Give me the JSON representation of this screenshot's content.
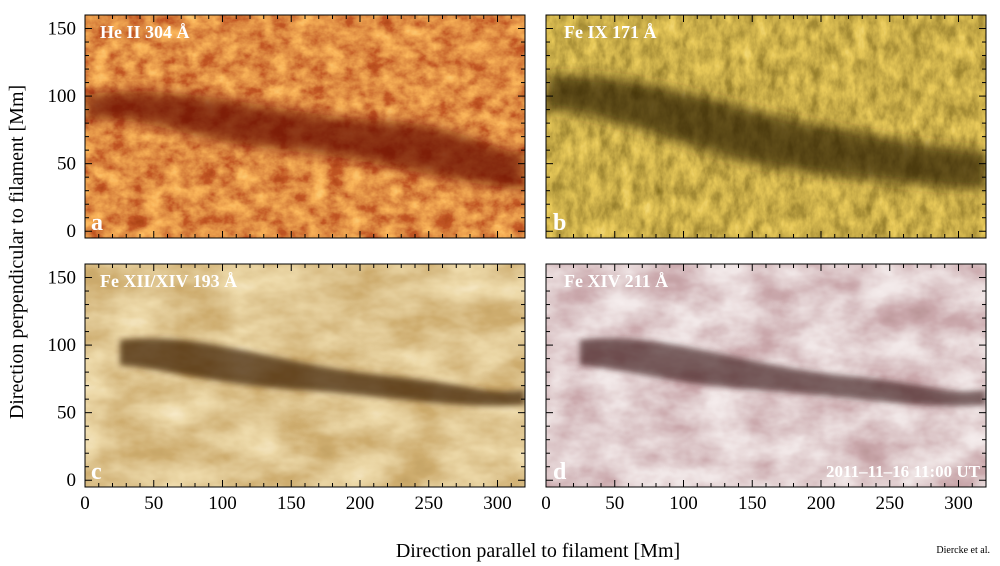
{
  "panels": [
    {
      "id": "a",
      "channel": "He II 304 Å",
      "letter": "a",
      "colors": {
        "dark": "#6a0a04",
        "mid": "#b52a0c",
        "bright": "#f29a3a",
        "base": "#8e1808"
      }
    },
    {
      "id": "b",
      "channel": "Fe IX 171 Å",
      "letter": "b",
      "colors": {
        "dark": "#3a2a04",
        "mid": "#8a6410",
        "bright": "#e2a82a",
        "base": "#6a4c0a"
      }
    },
    {
      "id": "c",
      "channel": "Fe XII/XIV 193 Å",
      "letter": "c",
      "colors": {
        "dark": "#4a2c0c",
        "mid": "#a8742e",
        "bright": "#f0dcae",
        "base": "#b88a46"
      }
    },
    {
      "id": "d",
      "channel": "Fe XIV 211 Å",
      "letter": "d",
      "colors": {
        "dark": "#4c2628",
        "mid": "#9a6468",
        "bright": "#f3e6e6",
        "base": "#b88c8e"
      }
    }
  ],
  "date_stamp": "2011–11–16   11:00 UT",
  "axes": {
    "x_title": "Direction parallel to filament [Mm]",
    "y_title": "Direction perpendicular to filament [Mm]",
    "x_ticks": [
      "0",
      "50",
      "100",
      "150",
      "200",
      "250",
      "300"
    ],
    "y_ticks": [
      "0",
      "50",
      "100",
      "150"
    ],
    "x_range_mm": [
      0,
      320
    ],
    "y_range_mm": [
      -5,
      160
    ]
  },
  "credit": "Diercke et al."
}
